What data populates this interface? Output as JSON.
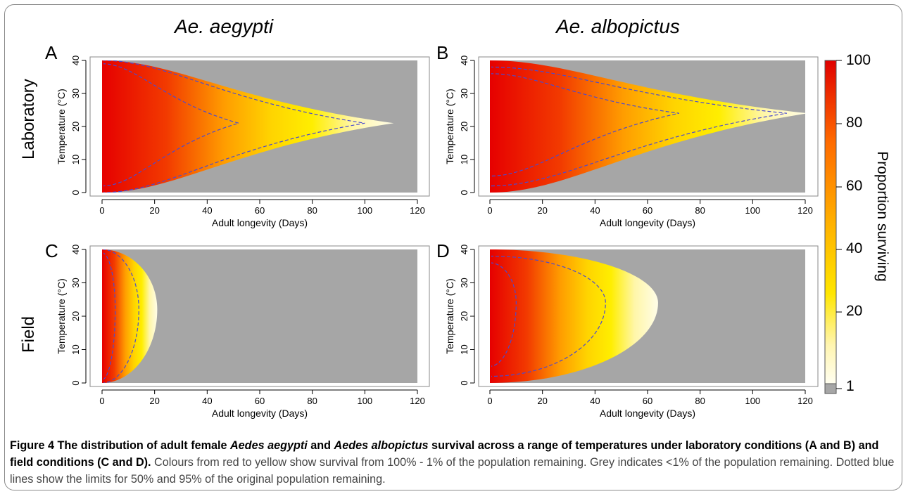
{
  "headers": {
    "col1": "Ae. aegypti",
    "col2": "Ae. albopictus"
  },
  "row_labels": {
    "row1": "Laboratory",
    "row2": "Field"
  },
  "panel_letters": [
    "A",
    "B",
    "C",
    "D"
  ],
  "colorbar": {
    "title": "Proportion surviving",
    "ticks": [
      "100",
      "80",
      "60",
      "40",
      "20",
      "1"
    ],
    "colors": [
      "#e00000",
      "#ff6a00",
      "#ffb000",
      "#ffe600",
      "#fff1a0",
      "#fffde6",
      "#a6a6a6"
    ]
  },
  "colors": {
    "red": "#e60000",
    "yellow": "#ffee00",
    "cream": "#fffde8",
    "grey": "#a6a6a6",
    "contour": "#4a4ad0"
  },
  "chart_data": [
    {
      "type": "heatmap",
      "panel": "A",
      "xlabel": "Adult longevity (Days)",
      "ylabel": "Temperature (°C)",
      "xlim": [
        0,
        120
      ],
      "ylim": [
        0,
        40
      ],
      "xticks": [
        "0",
        "20",
        "40",
        "60",
        "80",
        "100",
        "120"
      ],
      "yticks": [
        "0",
        "10",
        "20",
        "30",
        "40"
      ],
      "peak_temperature": 21,
      "contour_50": {
        "max_days": 52,
        "temp_range": [
          2,
          39
        ]
      },
      "contour_95": {
        "max_days": 100,
        "temp_range": [
          0,
          40
        ]
      },
      "limit_1pct": {
        "max_days": 111
      }
    },
    {
      "type": "heatmap",
      "panel": "B",
      "xlabel": "Adult longevity (Days)",
      "ylabel": "Temperature (°C)",
      "xlim": [
        0,
        120
      ],
      "ylim": [
        0,
        40
      ],
      "xticks": [
        "0",
        "20",
        "40",
        "60",
        "80",
        "100",
        "120"
      ],
      "yticks": [
        "0",
        "10",
        "20",
        "30",
        "40"
      ],
      "peak_temperature": 24,
      "contour_50": {
        "max_days": 72,
        "temp_range": [
          5,
          36
        ]
      },
      "contour_95": {
        "max_days": 113,
        "temp_range": [
          2,
          38
        ]
      },
      "limit_1pct": {
        "max_days": 121
      }
    },
    {
      "type": "heatmap",
      "panel": "C",
      "xlabel": "Adult longevity (Days)",
      "ylabel": "Temperature (°C)",
      "xlim": [
        0,
        120
      ],
      "ylim": [
        0,
        40
      ],
      "xticks": [
        "0",
        "20",
        "40",
        "60",
        "80",
        "100",
        "120"
      ],
      "yticks": [
        "0",
        "10",
        "20",
        "30",
        "40"
      ],
      "peak_temperature": 22,
      "contour_50": {
        "max_days": 5,
        "temp_range": [
          1,
          39
        ]
      },
      "contour_95": {
        "max_days": 14,
        "temp_range": [
          0,
          40
        ]
      },
      "limit_1pct": {
        "max_days": 21
      }
    },
    {
      "type": "heatmap",
      "panel": "D",
      "xlabel": "Adult longevity (Days)",
      "ylabel": "Temperature (°C)",
      "xlim": [
        0,
        120
      ],
      "ylim": [
        0,
        40
      ],
      "xticks": [
        "0",
        "20",
        "40",
        "60",
        "80",
        "100",
        "120"
      ],
      "yticks": [
        "0",
        "10",
        "20",
        "30",
        "40"
      ],
      "peak_temperature": 24,
      "contour_50": {
        "max_days": 10,
        "temp_range": [
          5,
          36
        ]
      },
      "contour_95": {
        "max_days": 44,
        "temp_range": [
          2,
          38
        ]
      },
      "limit_1pct": {
        "max_days": 64
      }
    }
  ],
  "caption": {
    "bold_1": "Figure 4 The distribution of adult female ",
    "bold_it_1": "Aedes aegypti",
    "bold_2": " and ",
    "bold_it_2": "Aedes albopictus",
    "bold_3": " survival across a range of temperatures under laboratory conditions (A and B) and field conditions (C and D).",
    "rest": " Colours from red to yellow show survival from 100% - 1% of the population remaining. Grey indicates <1% of the population remaining. Dotted blue lines show the limits for 50% and 95% of the original population remaining."
  }
}
